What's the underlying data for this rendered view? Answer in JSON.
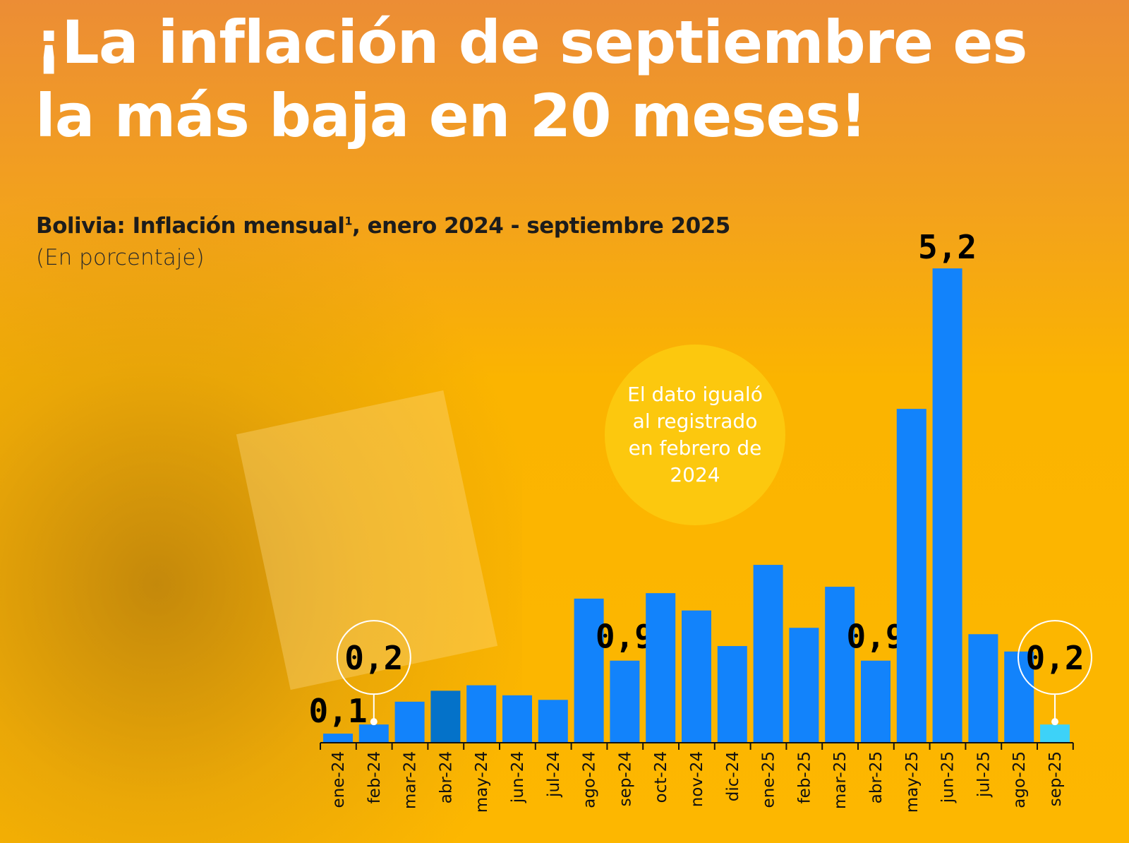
{
  "headline": "¡La inflación de septiembre es la más baja en 20 meses!",
  "note": "El dato igualó al registrado en febrero de 2024",
  "chart_data": {
    "type": "bar",
    "title": "Bolivia: Inflación mensual",
    "title_footnote": "1",
    "title_suffix": ", enero 2024 - septiembre 2025",
    "subtitle": "(En porcentaje)",
    "categories": [
      "ene-24",
      "feb-24",
      "mar-24",
      "abr-24",
      "may-24",
      "jun-24",
      "jul-24",
      "ago-24",
      "sep-24",
      "oct-24",
      "nov-24",
      "dic-24",
      "ene-25",
      "feb-25",
      "mar-25",
      "abr-25",
      "may-25",
      "jun-25",
      "jul-25",
      "ago-25",
      "sep-25"
    ],
    "values": [
      0.1,
      0.2,
      0.45,
      0.57,
      0.63,
      0.52,
      0.47,
      1.58,
      0.9,
      1.64,
      1.45,
      1.06,
      1.95,
      1.26,
      1.71,
      0.9,
      3.66,
      5.2,
      1.19,
      1.0,
      0.2
    ],
    "data_labels": [
      "0,1",
      "0,2",
      null,
      null,
      null,
      null,
      null,
      null,
      "0,9",
      null,
      null,
      null,
      null,
      null,
      null,
      "0,9",
      null,
      "5,2",
      null,
      null,
      "0,2"
    ],
    "highlighted_labels": [
      "feb-24",
      "sep-25"
    ],
    "ylim": [
      0,
      5.5
    ],
    "grid": false,
    "colors": {
      "bar": "#1283fb",
      "abr-24": "#0472c9",
      "sep-25": "#3dd2f8",
      "callout": "#ffffff"
    }
  }
}
